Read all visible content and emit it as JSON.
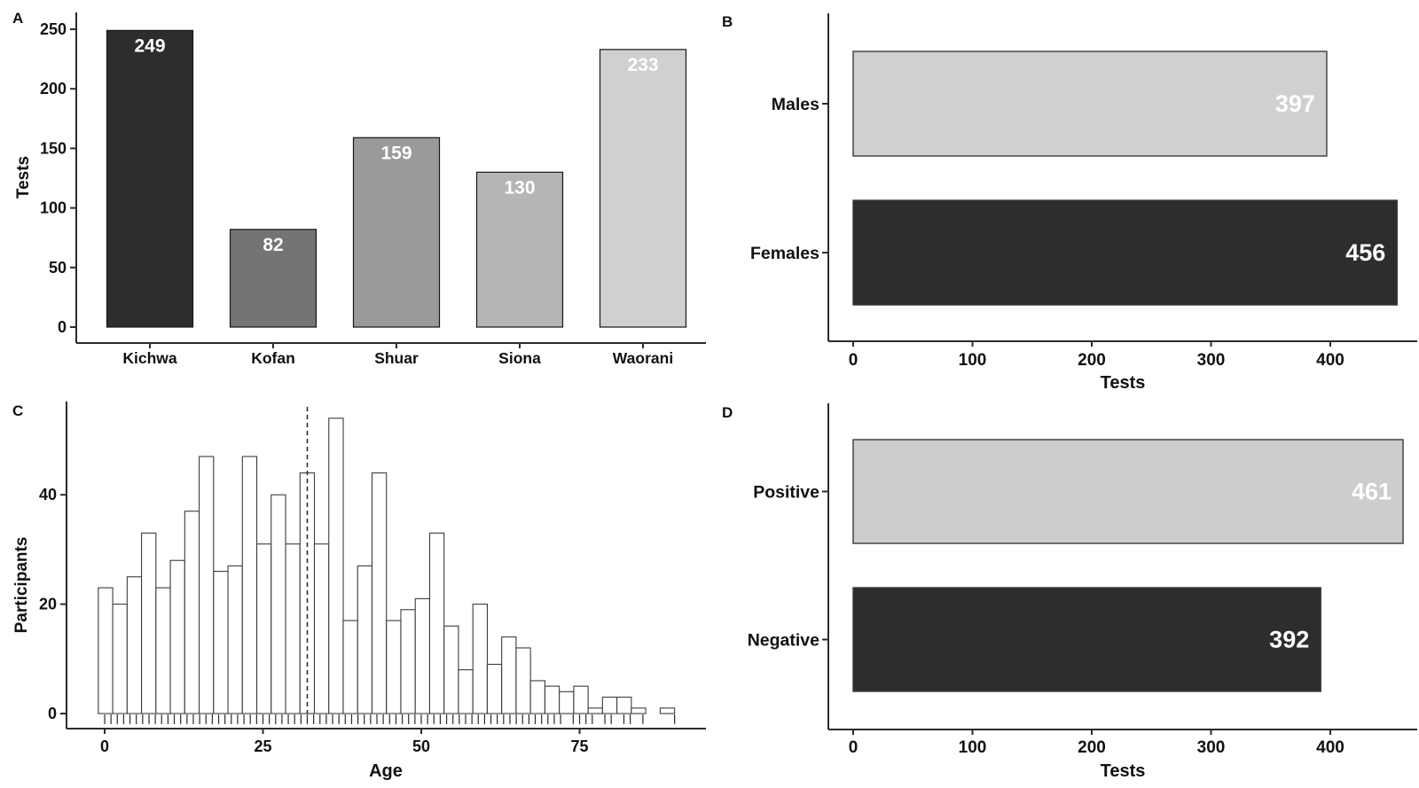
{
  "figure": {
    "background_color": "#ffffff",
    "axis_color": "#2b2b2b",
    "text_color": "#111111",
    "value_label_color": "#ffffff"
  },
  "chart_data": [
    {
      "id": "A",
      "panel_label": "A",
      "type": "bar",
      "ylabel": "Tests",
      "categories": [
        "Kichwa",
        "Kofan",
        "Shuar",
        "Siona",
        "Waorani"
      ],
      "values": [
        249,
        82,
        159,
        130,
        233
      ],
      "bar_colors": [
        "#2d2d2d",
        "#747474",
        "#9a9a9a",
        "#b5b5b5",
        "#d0d0d0"
      ],
      "yticks": [
        0,
        50,
        100,
        150,
        200,
        250
      ],
      "ylim": [
        0,
        260
      ],
      "grid": false,
      "value_labels_inside_top": true
    },
    {
      "id": "B",
      "panel_label": "B",
      "type": "hbar",
      "xlabel": "Tests",
      "categories": [
        "Males",
        "Females"
      ],
      "values": [
        397,
        456
      ],
      "bar_colors": [
        "#d0d0d0",
        "#2d2d2d"
      ],
      "xticks": [
        0,
        100,
        200,
        300,
        400
      ],
      "xlim": [
        0,
        466
      ],
      "grid": false,
      "value_labels_inside_right": true
    },
    {
      "id": "C",
      "panel_label": "C",
      "type": "histogram",
      "xlabel": "Age",
      "ylabel": "Participants",
      "bin_start": -1,
      "bin_width": 2.275,
      "counts": [
        23,
        20,
        25,
        33,
        23,
        28,
        37,
        47,
        26,
        27,
        47,
        31,
        40,
        31,
        44,
        31,
        54,
        17,
        27,
        44,
        17,
        19,
        21,
        33,
        16,
        8,
        20,
        9,
        14,
        12,
        6,
        5,
        4,
        5,
        1,
        3,
        3,
        1,
        0,
        1
      ],
      "yticks": [
        0,
        20,
        40
      ],
      "xticks": [
        0,
        25,
        50,
        75
      ],
      "xlim": [
        -6,
        92
      ],
      "ylim": [
        0,
        56
      ],
      "dashed_line_age": 32,
      "rug_ages": [
        0,
        1,
        2,
        3,
        4,
        5,
        6,
        7,
        8,
        9,
        10,
        11,
        12,
        13,
        14,
        15,
        16,
        17,
        18,
        19,
        20,
        21,
        22,
        23,
        24,
        25,
        26,
        27,
        28,
        29,
        30,
        31,
        32,
        33,
        34,
        35,
        36,
        37,
        38,
        39,
        40,
        41,
        42,
        43,
        44,
        45,
        46,
        47,
        48,
        49,
        50,
        51,
        52,
        53,
        54,
        55,
        56,
        57,
        58,
        59,
        60,
        61,
        62,
        63,
        64,
        65,
        66,
        67,
        68,
        69,
        70,
        71,
        72,
        74,
        75,
        76,
        77,
        79,
        80,
        82,
        83,
        85,
        90
      ],
      "bar_fill": "#ffffff",
      "bar_stroke": "#3c3c3c",
      "grid": false
    },
    {
      "id": "D",
      "panel_label": "D",
      "type": "hbar",
      "xlabel": "Tests",
      "categories": [
        "Positive",
        "Negative"
      ],
      "values": [
        461,
        392
      ],
      "bar_colors": [
        "#cdcdcd",
        "#2d2d2d"
      ],
      "xticks": [
        0,
        100,
        200,
        300,
        400
      ],
      "xlim": [
        0,
        466
      ],
      "grid": false,
      "value_labels_inside_right": true
    }
  ]
}
